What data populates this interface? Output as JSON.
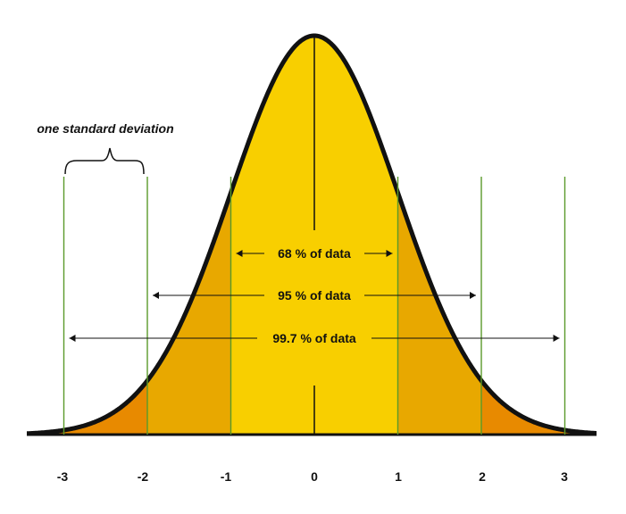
{
  "diagram": {
    "sd_note": "one standard deviation",
    "ticks": [
      "-3",
      "-2",
      "-1",
      "0",
      "1",
      "2",
      "3"
    ],
    "ranges": [
      {
        "label": "68 % of data",
        "sigma": 1
      },
      {
        "label": "95 % of data",
        "sigma": 2
      },
      {
        "label": "99.7 % of data",
        "sigma": 3
      }
    ],
    "colors": {
      "center": "#f8cf00",
      "middle": "#e8a800",
      "tail": "#e88a00",
      "outline": "#111111",
      "sd_lines": "#5a9a2a",
      "arrows": "#111111"
    }
  }
}
